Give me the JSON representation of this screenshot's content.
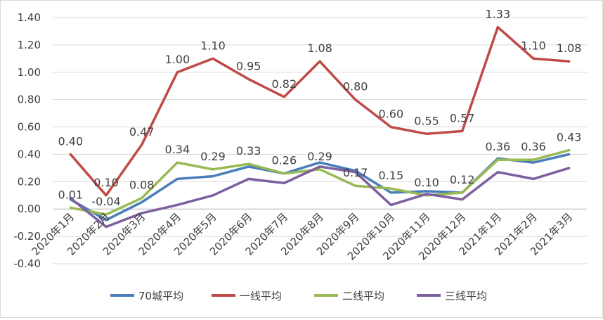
{
  "chart_data": {
    "type": "line",
    "categories": [
      "2020年1月",
      "2020年2月",
      "2020年3月",
      "2020年4月",
      "2020年5月",
      "2020年6月",
      "2020年7月",
      "2020年8月",
      "2020年9月",
      "2020年10月",
      "2020年11月",
      "2020年12月",
      "2021年1月",
      "2021年2月",
      "2021年3月"
    ],
    "ylim": [
      -0.4,
      1.4
    ],
    "yticks": [
      "1.40",
      "1.20",
      "1.00",
      "0.80",
      "0.60",
      "0.40",
      "0.20",
      "0.00",
      "-0.20",
      "-0.40"
    ],
    "grid": true,
    "legend_position": "bottom",
    "series": [
      {
        "name": "70城平均",
        "color": "#4a7ebb",
        "values": [
          0.07,
          -0.08,
          0.05,
          0.22,
          0.24,
          0.31,
          0.26,
          0.34,
          0.28,
          0.12,
          0.13,
          0.12,
          0.37,
          0.34,
          0.4
        ]
      },
      {
        "name": "一线平均",
        "color": "#be4b48",
        "values": [
          0.4,
          0.1,
          0.47,
          1.0,
          1.1,
          0.95,
          0.82,
          1.08,
          0.8,
          0.6,
          0.55,
          0.57,
          1.33,
          1.1,
          1.08
        ],
        "labels": [
          "0.40",
          "0.10",
          "0.47",
          "1.00",
          "1.10",
          "0.95",
          "0.82",
          "1.08",
          "0.80",
          "0.60",
          "0.55",
          "0.57",
          "1.33",
          "1.10",
          "1.08"
        ]
      },
      {
        "name": "二线平均",
        "color": "#98b954",
        "values": [
          0.01,
          -0.04,
          0.08,
          0.34,
          0.29,
          0.33,
          0.26,
          0.29,
          0.17,
          0.15,
          0.1,
          0.12,
          0.36,
          0.36,
          0.43
        ],
        "labels": [
          "0.01",
          "-0.04",
          "0.08",
          "0.34",
          "0.29",
          "0.33",
          "0.26",
          "0.29",
          "0.17",
          "0.15",
          "0.10",
          "0.12",
          "0.36",
          "0.36",
          "0.43"
        ]
      },
      {
        "name": "三线平均",
        "color": "#7d5f9f",
        "values": [
          0.08,
          -0.13,
          -0.03,
          0.03,
          0.1,
          0.22,
          0.19,
          0.31,
          0.27,
          0.03,
          0.11,
          0.07,
          0.27,
          0.22,
          0.3
        ]
      }
    ]
  }
}
